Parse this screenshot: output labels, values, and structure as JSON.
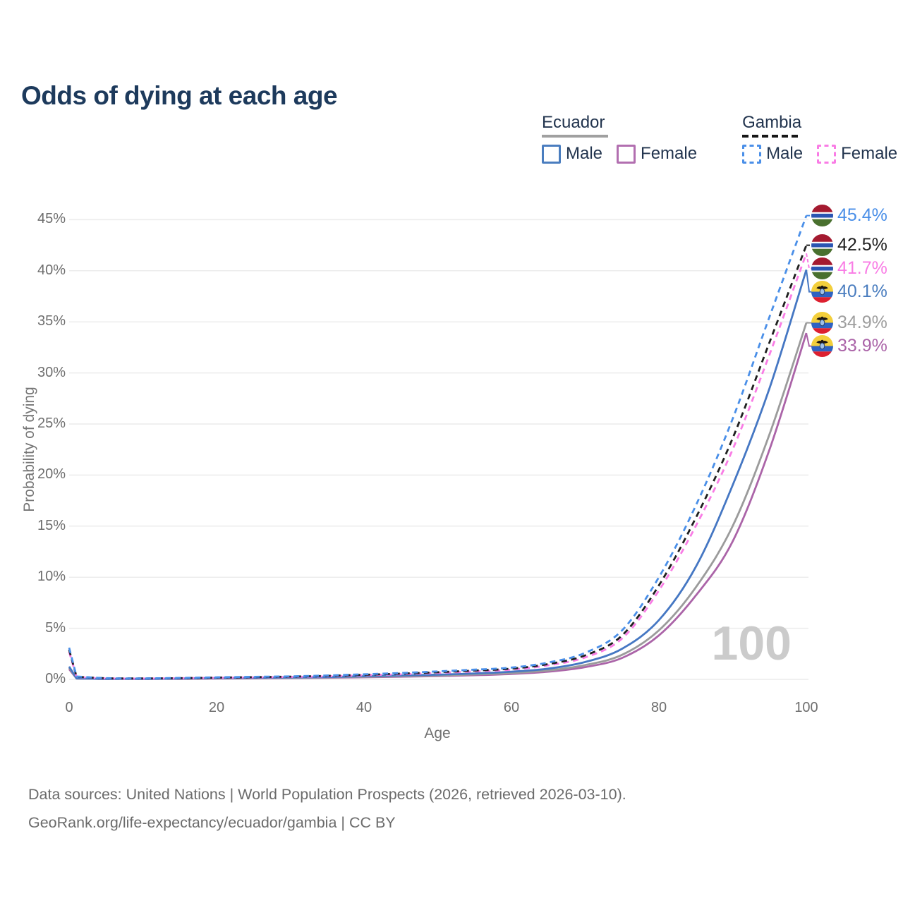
{
  "title": "Odds of dying at each age",
  "watermark": "100",
  "legend": {
    "groups": [
      {
        "label": "Ecuador",
        "underline_style": "solid",
        "underline_color": "#a0a0a0",
        "items": [
          {
            "label": "Male",
            "color": "#4a7dbf",
            "dash": false
          },
          {
            "label": "Female",
            "color": "#b26fb0",
            "dash": false
          }
        ]
      },
      {
        "label": "Gambia",
        "underline_style": "dashed",
        "underline_color": "#161616",
        "items": [
          {
            "label": "Male",
            "color": "#4a8fe8",
            "dash": true
          },
          {
            "label": "Female",
            "color": "#f97ce5",
            "dash": true
          }
        ]
      }
    ]
  },
  "footer": {
    "line1": "Data sources: United Nations | World Population Prospects (2026, retrieved 2026-03-10).",
    "line2": "GeoRank.org/life-expectancy/ecuador/gambia | CC BY"
  },
  "flags": {
    "gambia": {
      "red": "#a41a30",
      "white": "#ffffff",
      "blue": "#2a55b2",
      "green": "#49702f"
    },
    "ecuador": {
      "yellow": "#f3cf3c",
      "blue": "#2f63c2",
      "red": "#dd2030",
      "crest_dark": "#1d1710",
      "crest_shield": "#9fc0e8",
      "crest_outline": "#25406b"
    }
  },
  "chart_data": {
    "type": "line",
    "title": "Odds of dying at each age",
    "xlabel": "Age",
    "ylabel": "Probability of dying",
    "x_ticks": [
      0,
      20,
      40,
      60,
      80,
      100
    ],
    "y_ticks_percent": [
      0,
      5,
      10,
      15,
      20,
      25,
      30,
      35,
      40,
      45
    ],
    "xlim": [
      0,
      100
    ],
    "ylim_percent": [
      0,
      46
    ],
    "grid": "horizontal-only",
    "gridline_color": "#ececec",
    "legend_position": "top-right",
    "ages": [
      0,
      1,
      5,
      10,
      15,
      20,
      25,
      30,
      35,
      40,
      45,
      50,
      55,
      60,
      65,
      70,
      75,
      80,
      85,
      90,
      95,
      100
    ],
    "series": [
      {
        "name": "Gambia Male",
        "country": "Gambia",
        "sex": "male",
        "flag_icon": "gambia-flag-icon",
        "color": "#4a8fe8",
        "label_color": "#4a8fe8",
        "dash": true,
        "end_label": "45.4%",
        "end_value_percent": 45.4,
        "values_percent": [
          3.1,
          0.28,
          0.12,
          0.1,
          0.14,
          0.2,
          0.25,
          0.3,
          0.38,
          0.5,
          0.62,
          0.78,
          0.95,
          1.15,
          1.65,
          2.6,
          4.8,
          10.0,
          17.0,
          25.5,
          35.5,
          45.4
        ]
      },
      {
        "name": "Gambia Both sexes",
        "country": "Gambia",
        "sex": "both",
        "flag_icon": "gambia-flag-icon",
        "color": "#1f1f1f",
        "label_color": "#1f1f1f",
        "dash": true,
        "end_label": "42.5%",
        "end_value_percent": 42.5,
        "values_percent": [
          2.9,
          0.26,
          0.11,
          0.09,
          0.12,
          0.17,
          0.22,
          0.27,
          0.34,
          0.45,
          0.56,
          0.7,
          0.86,
          1.05,
          1.5,
          2.35,
          4.3,
          9.2,
          15.8,
          23.6,
          33.0,
          42.5
        ]
      },
      {
        "name": "Gambia Female",
        "country": "Gambia",
        "sex": "female",
        "flag_icon": "gambia-flag-icon",
        "color": "#f97ce5",
        "label_color": "#f97ce5",
        "dash": true,
        "end_label": "41.7%",
        "end_value_percent": 41.7,
        "values_percent": [
          2.7,
          0.24,
          0.1,
          0.08,
          0.11,
          0.15,
          0.2,
          0.24,
          0.3,
          0.4,
          0.5,
          0.63,
          0.78,
          0.95,
          1.38,
          2.15,
          4.0,
          8.7,
          15.0,
          22.5,
          31.8,
          41.7
        ]
      },
      {
        "name": "Ecuador Male",
        "country": "Ecuador",
        "sex": "male",
        "flag_icon": "ecuador-flag-icon",
        "color": "#4577c3",
        "label_color": "#4a7dbf",
        "dash": false,
        "end_label": "40.1%",
        "end_value_percent": 40.1,
        "values_percent": [
          1.25,
          0.1,
          0.05,
          0.05,
          0.08,
          0.13,
          0.16,
          0.19,
          0.23,
          0.31,
          0.38,
          0.46,
          0.58,
          0.75,
          1.05,
          1.7,
          3.0,
          5.8,
          11.0,
          19.0,
          28.5,
          40.1
        ]
      },
      {
        "name": "Ecuador Both sexes",
        "country": "Ecuador",
        "sex": "both",
        "flag_icon": "ecuador-flag-icon",
        "color": "#9b9b9b",
        "label_color": "#9e9e9e",
        "dash": false,
        "end_label": "34.9%",
        "end_value_percent": 34.9,
        "values_percent": [
          1.15,
          0.09,
          0.05,
          0.05,
          0.07,
          0.1,
          0.13,
          0.16,
          0.19,
          0.25,
          0.31,
          0.38,
          0.48,
          0.62,
          0.88,
          1.4,
          2.4,
          4.8,
          9.0,
          15.0,
          24.0,
          34.9
        ]
      },
      {
        "name": "Ecuador Female",
        "country": "Ecuador",
        "sex": "female",
        "flag_icon": "ecuador-flag-icon",
        "color": "#ab64a8",
        "label_color": "#ab64a8",
        "dash": false,
        "end_label": "33.9%",
        "end_value_percent": 33.9,
        "values_percent": [
          1.0,
          0.08,
          0.04,
          0.04,
          0.05,
          0.08,
          0.1,
          0.13,
          0.16,
          0.21,
          0.26,
          0.32,
          0.41,
          0.53,
          0.75,
          1.2,
          2.1,
          4.3,
          8.2,
          13.5,
          22.5,
          33.9
        ]
      }
    ]
  }
}
